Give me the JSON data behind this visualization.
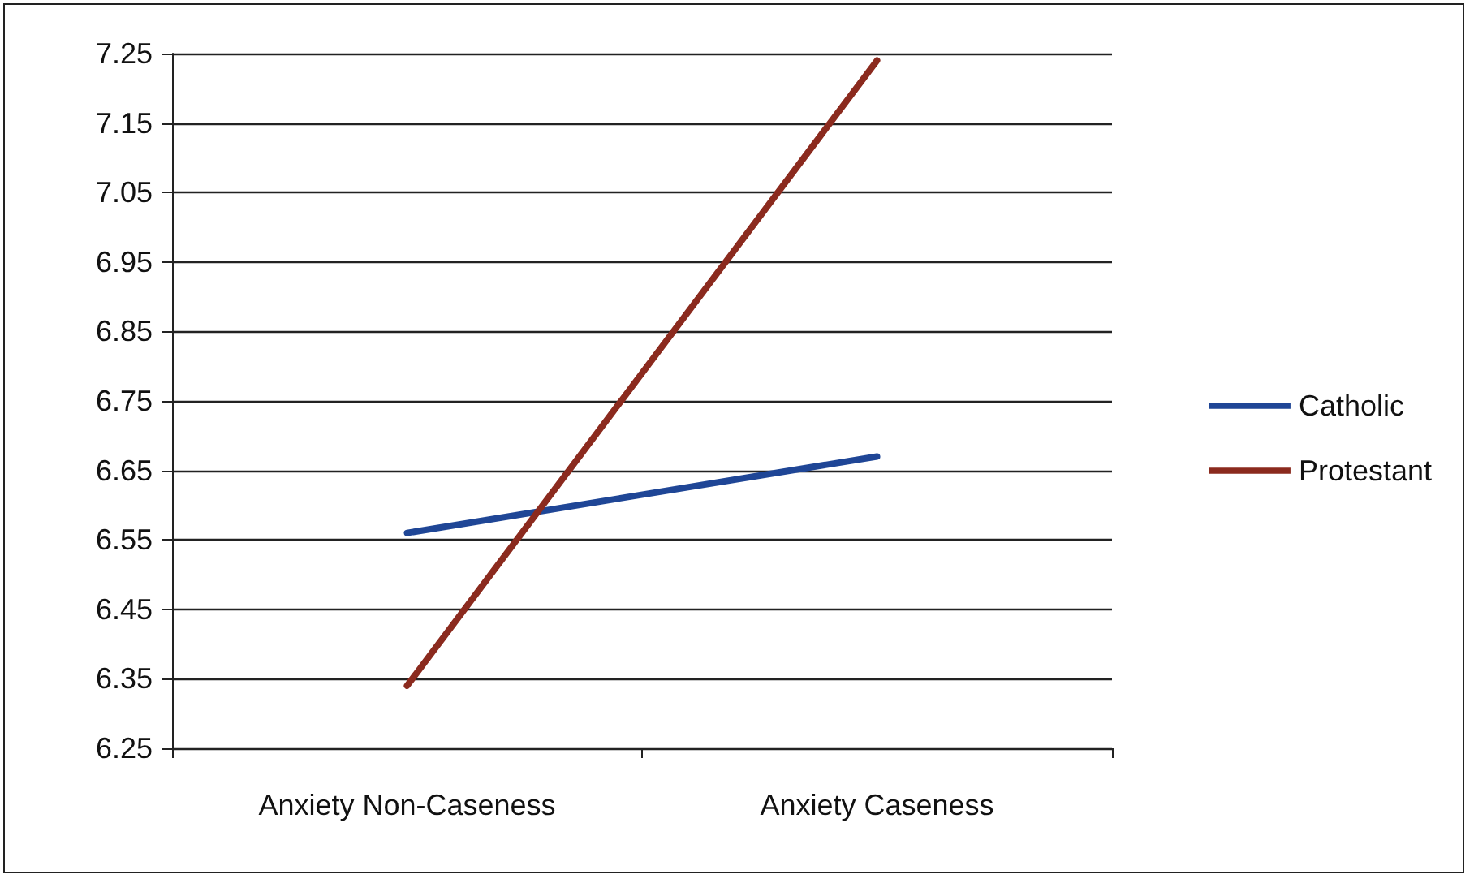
{
  "chart_data": {
    "type": "line",
    "categories": [
      "Anxiety Non-Caseness",
      "Anxiety Caseness"
    ],
    "series": [
      {
        "name": "Catholic",
        "color": "#1f4696",
        "values": [
          6.56,
          6.67
        ]
      },
      {
        "name": "Protestant",
        "color": "#8b2a1e",
        "values": [
          6.34,
          7.24
        ]
      }
    ],
    "ylim": [
      6.25,
      7.25
    ],
    "yticks": [
      6.25,
      6.35,
      6.45,
      6.55,
      6.65,
      6.75,
      6.85,
      6.95,
      7.05,
      7.15,
      7.25
    ],
    "grid": "y",
    "legend": "right",
    "marker": "none",
    "line_style": "solid"
  }
}
